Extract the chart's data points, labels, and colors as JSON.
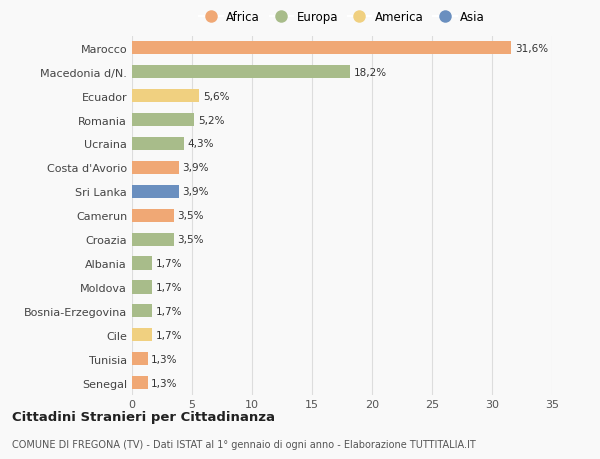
{
  "countries": [
    "Marocco",
    "Macedonia d/N.",
    "Ecuador",
    "Romania",
    "Ucraina",
    "Costa d'Avorio",
    "Sri Lanka",
    "Camerun",
    "Croazia",
    "Albania",
    "Moldova",
    "Bosnia-Erzegovina",
    "Cile",
    "Tunisia",
    "Senegal"
  ],
  "values": [
    31.6,
    18.2,
    5.6,
    5.2,
    4.3,
    3.9,
    3.9,
    3.5,
    3.5,
    1.7,
    1.7,
    1.7,
    1.7,
    1.3,
    1.3
  ],
  "labels": [
    "31,6%",
    "18,2%",
    "5,6%",
    "5,2%",
    "4,3%",
    "3,9%",
    "3,9%",
    "3,5%",
    "3,5%",
    "1,7%",
    "1,7%",
    "1,7%",
    "1,7%",
    "1,3%",
    "1,3%"
  ],
  "continents": [
    "Africa",
    "Europa",
    "America",
    "Europa",
    "Europa",
    "Africa",
    "Asia",
    "Africa",
    "Europa",
    "Europa",
    "Europa",
    "Europa",
    "America",
    "Africa",
    "Africa"
  ],
  "colors": {
    "Africa": "#F0A875",
    "Europa": "#A8BC8A",
    "America": "#F0D080",
    "Asia": "#6A8FBF"
  },
  "legend_order": [
    "Africa",
    "Europa",
    "America",
    "Asia"
  ],
  "title1": "Cittadini Stranieri per Cittadinanza",
  "title2": "COMUNE DI FREGONA (TV) - Dati ISTAT al 1° gennaio di ogni anno - Elaborazione TUTTITALIA.IT",
  "xlim": [
    0,
    35
  ],
  "xticks": [
    0,
    5,
    10,
    15,
    20,
    25,
    30,
    35
  ],
  "background_color": "#f9f9f9",
  "grid_color": "#dddddd",
  "bar_height": 0.55
}
